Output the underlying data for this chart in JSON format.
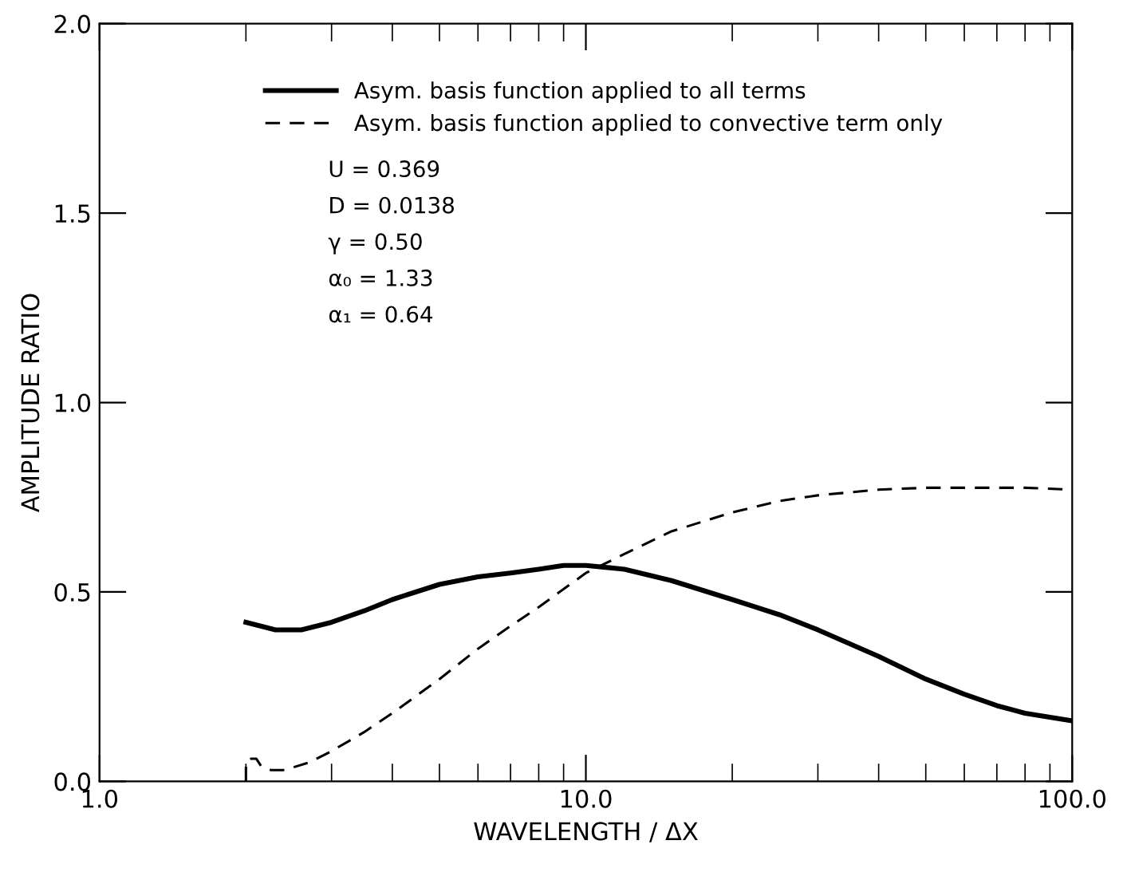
{
  "chart_data": {
    "type": "line",
    "xlabel": "WAVELENGTH / ΔX",
    "ylabel": "AMPLITUDE RATIO",
    "log": "x",
    "xlim": [
      1,
      100
    ],
    "xticks": [
      {
        "value": 1,
        "label": "1.0"
      },
      {
        "value": 10,
        "label": "10.0"
      },
      {
        "value": 100,
        "label": "100.0"
      }
    ],
    "ylim": [
      0,
      2
    ],
    "yticks": [
      {
        "value": 0,
        "label": "0.0"
      },
      {
        "value": 0.5,
        "label": "0.5"
      },
      {
        "value": 1,
        "label": "1.0"
      },
      {
        "value": 1.5,
        "label": "1.5"
      },
      {
        "value": 2,
        "label": "2.0"
      }
    ],
    "grid": false,
    "legend": "top left",
    "marker": "none",
    "series": [
      {
        "name": "Asym. basis function applied to all terms",
        "color": "#000000",
        "line_style": "solid",
        "x": [
          2,
          2.3,
          2.6,
          3,
          3.5,
          4,
          5,
          6,
          7,
          8,
          9,
          10,
          12,
          15,
          20,
          25,
          30,
          40,
          50,
          60,
          70,
          80,
          100
        ],
        "values": [
          0.42,
          0.4,
          0.4,
          0.42,
          0.45,
          0.48,
          0.52,
          0.54,
          0.55,
          0.56,
          0.57,
          0.57,
          0.56,
          0.53,
          0.48,
          0.44,
          0.4,
          0.33,
          0.27,
          0.23,
          0.2,
          0.18,
          0.16
        ]
      },
      {
        "name": "Asym. basis function applied to convective term only",
        "color": "#000000",
        "line_style": "dashed",
        "x": [
          2,
          2,
          2.05,
          2.1,
          2.15,
          2.25,
          2.4,
          2.7,
          3,
          3.5,
          4,
          5,
          6,
          7,
          8,
          10,
          12,
          15,
          20,
          25,
          30,
          40,
          50,
          60,
          80,
          100
        ],
        "values": [
          0.0,
          0.05,
          0.06,
          0.06,
          0.04,
          0.03,
          0.03,
          0.05,
          0.08,
          0.13,
          0.18,
          0.27,
          0.35,
          0.41,
          0.46,
          0.55,
          0.6,
          0.66,
          0.71,
          0.74,
          0.755,
          0.77,
          0.775,
          0.775,
          0.775,
          0.77
        ]
      }
    ],
    "annotations": [
      "U = 0.369",
      "D = 0.0138",
      "γ = 0.50",
      "α₀ = 1.33",
      "α₁ = 0.64"
    ]
  }
}
